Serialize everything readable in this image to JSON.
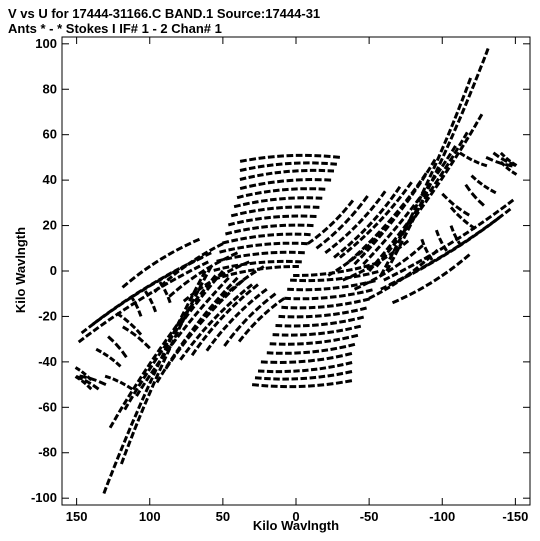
{
  "header": {
    "line1": "V vs U for 17444-31166.C BAND.1   Source:17444-31",
    "line2": "Ants * - *     Stokes I   IF# 1 - 2   Chan# 1"
  },
  "chart_data": {
    "type": "scatter",
    "title": "V vs U for 17444-31166.C BAND.1   Source:17444-31",
    "subtitle": "Ants * - *     Stokes I   IF# 1 - 2   Chan# 1",
    "xlabel": "Kilo Wavlngth",
    "ylabel": "Kilo Wavlngth",
    "xlim": [
      160,
      -160
    ],
    "ylim": [
      -103,
      103
    ],
    "x_reversed": true,
    "grid": false,
    "xticks": [
      150,
      100,
      50,
      0,
      -50,
      -100,
      -150
    ],
    "xtick_labels": [
      "150",
      "100",
      "50",
      "0",
      "-50",
      "-100",
      "-150"
    ],
    "yticks": [
      100,
      80,
      60,
      40,
      20,
      0,
      -20,
      -40,
      -60,
      -80,
      -100
    ],
    "ytick_labels": [
      "100",
      "80",
      "60",
      "40",
      "20",
      "0",
      "-20",
      "-40",
      "-60",
      "-80",
      "-100"
    ],
    "tracks_positive_half": [
      [
        [
          -62,
          0
        ],
        [
          -132,
          99
        ]
      ],
      [
        [
          -58,
          -2
        ],
        [
          -120,
          86
        ]
      ],
      [
        [
          -55,
          2
        ],
        [
          -128,
          70
        ]
      ],
      [
        [
          -50,
          0
        ],
        [
          -118,
          62
        ]
      ],
      [
        [
          -46,
          3
        ],
        [
          -110,
          56
        ]
      ],
      [
        [
          -40,
          3
        ],
        [
          -96,
          50
        ]
      ],
      [
        [
          -36,
          4
        ],
        [
          -90,
          44
        ]
      ],
      [
        [
          -30,
          6
        ],
        [
          -80,
          40
        ]
      ],
      [
        [
          -26,
          6
        ],
        [
          -72,
          38
        ]
      ],
      [
        [
          -20,
          8
        ],
        [
          -62,
          36
        ]
      ],
      [
        [
          -14,
          10
        ],
        [
          -50,
          34
        ]
      ],
      [
        [
          -8,
          12
        ],
        [
          -40,
          32
        ]
      ],
      [
        [
          -60,
          -4
        ],
        [
          -150,
          32
        ]
      ],
      [
        [
          -64,
          -6
        ],
        [
          -148,
          28
        ]
      ],
      [
        [
          -58,
          -8
        ],
        [
          -140,
          24
        ]
      ],
      [
        [
          -30,
          50
        ],
        [
          40,
          48
        ]
      ],
      [
        [
          -28,
          47
        ],
        [
          40,
          44
        ]
      ],
      [
        [
          -26,
          44
        ],
        [
          40,
          40
        ]
      ],
      [
        [
          -24,
          40
        ],
        [
          40,
          36
        ]
      ],
      [
        [
          -20,
          36
        ],
        [
          42,
          32
        ]
      ],
      [
        [
          -18,
          32
        ],
        [
          44,
          28
        ]
      ],
      [
        [
          -16,
          28
        ],
        [
          46,
          24
        ]
      ],
      [
        [
          -14,
          24
        ],
        [
          48,
          20
        ]
      ],
      [
        [
          -12,
          20
        ],
        [
          50,
          16
        ]
      ],
      [
        [
          -10,
          16
        ],
        [
          52,
          12
        ]
      ],
      [
        [
          -8,
          12
        ],
        [
          54,
          8
        ]
      ],
      [
        [
          -6,
          8
        ],
        [
          56,
          4
        ]
      ],
      [
        [
          -4,
          4
        ],
        [
          58,
          0
        ]
      ],
      [
        [
          -2,
          2
        ],
        [
          58,
          -4
        ]
      ],
      [
        [
          -130,
          50
        ],
        [
          -150,
          46
        ]
      ],
      [
        [
          -112,
          52
        ],
        [
          -132,
          46
        ]
      ],
      [
        [
          -100,
          34
        ],
        [
          -120,
          24
        ]
      ],
      [
        [
          -106,
          28
        ],
        [
          -124,
          18
        ]
      ],
      [
        [
          -120,
          42
        ],
        [
          -138,
          34
        ]
      ],
      [
        [
          -116,
          38
        ],
        [
          -130,
          28
        ]
      ],
      [
        [
          -135,
          52
        ],
        [
          -152,
          46
        ]
      ],
      [
        [
          -140,
          48
        ],
        [
          -152,
          42
        ]
      ],
      [
        [
          -66,
          -14
        ],
        [
          -120,
          8
        ]
      ],
      [
        [
          -50,
          -12
        ],
        [
          -98,
          10
        ]
      ],
      [
        [
          -40,
          -8
        ],
        [
          -88,
          12
        ]
      ],
      [
        [
          -32,
          -4
        ],
        [
          -78,
          14
        ]
      ],
      [
        [
          -22,
          -2
        ],
        [
          -60,
          18
        ]
      ],
      [
        [
          -86,
          14
        ],
        [
          -94,
          4
        ]
      ],
      [
        [
          -96,
          18
        ],
        [
          -104,
          8
        ]
      ],
      [
        [
          -106,
          20
        ],
        [
          -114,
          10
        ]
      ],
      [
        [
          -140,
          52
        ],
        [
          -152,
          46
        ]
      ]
    ],
    "tracks_note": "Each track is a curved baseline segment [[u_start,v_start],[u_end,v_end]] in kilo-wavelengths; the plot also contains the point-symmetric conjugate (-u,-v) of every track."
  }
}
